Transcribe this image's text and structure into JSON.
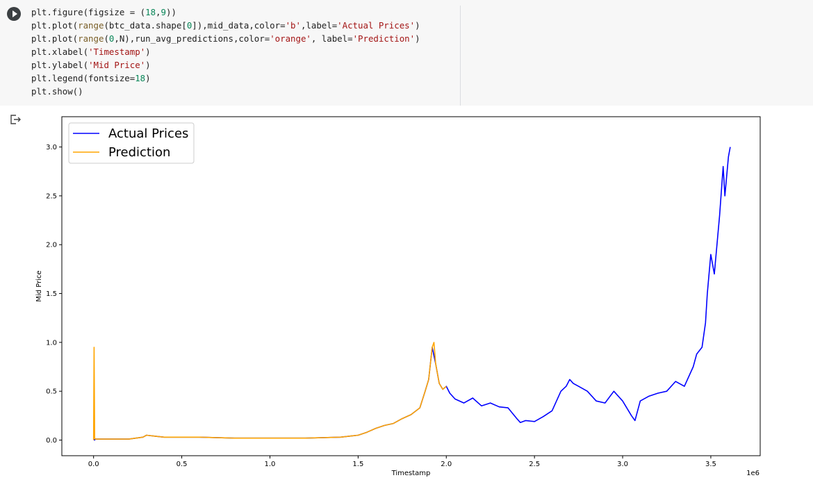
{
  "cell": {
    "code_lines": [
      [
        {
          "t": "plt.figure(figsize = ("
        },
        {
          "t": "18",
          "c": "n"
        },
        {
          "t": ","
        },
        {
          "t": "9",
          "c": "n"
        },
        {
          "t": "))"
        }
      ],
      [
        {
          "t": "plt.plot("
        },
        {
          "t": "range",
          "c": "f"
        },
        {
          "t": "(btc_data.shape["
        },
        {
          "t": "0",
          "c": "n"
        },
        {
          "t": "]),mid_data,color="
        },
        {
          "t": "'b'",
          "c": "s"
        },
        {
          "t": ",label="
        },
        {
          "t": "'Actual Prices'",
          "c": "s"
        },
        {
          "t": ")"
        }
      ],
      [
        {
          "t": "plt.plot("
        },
        {
          "t": "range",
          "c": "f"
        },
        {
          "t": "("
        },
        {
          "t": "0",
          "c": "n"
        },
        {
          "t": ",N),run_avg_predictions,color="
        },
        {
          "t": "'orange'",
          "c": "s"
        },
        {
          "t": ", label="
        },
        {
          "t": "'Prediction'",
          "c": "s"
        },
        {
          "t": ")"
        }
      ],
      [
        {
          "t": "plt.xlabel("
        },
        {
          "t": "'Timestamp'",
          "c": "s"
        },
        {
          "t": ")"
        }
      ],
      [
        {
          "t": "plt.ylabel("
        },
        {
          "t": "'Mid Price'",
          "c": "s"
        },
        {
          "t": ")"
        }
      ],
      [
        {
          "t": "plt.legend(fontsize="
        },
        {
          "t": "18",
          "c": "n"
        },
        {
          "t": ")"
        }
      ],
      [
        {
          "t": "plt.show()"
        }
      ]
    ]
  },
  "chart_data": {
    "type": "line",
    "xlabel": "Timestamp",
    "ylabel": "Mid Price",
    "x_offset_label": "1e6",
    "xlim": [
      -0.18,
      3.78
    ],
    "ylim": [
      -0.16,
      3.31
    ],
    "x_ticks": [
      0.0,
      0.5,
      1.0,
      1.5,
      2.0,
      2.5,
      3.0,
      3.5
    ],
    "x_tick_labels": [
      "0.0",
      "0.5",
      "1.0",
      "1.5",
      "2.0",
      "2.5",
      "3.0",
      "3.5"
    ],
    "y_ticks": [
      0.0,
      0.5,
      1.0,
      1.5,
      2.0,
      2.5,
      3.0
    ],
    "y_tick_labels": [
      "0.0",
      "0.5",
      "1.0",
      "1.5",
      "2.0",
      "2.5",
      "3.0"
    ],
    "grid": false,
    "legend": "top-left",
    "series": [
      {
        "name": "Actual Prices",
        "color": "#0000ff",
        "x": [
          0,
          0.005,
          0.01,
          0.1,
          0.2,
          0.28,
          0.3,
          0.35,
          0.4,
          0.5,
          0.6,
          0.8,
          1.0,
          1.2,
          1.4,
          1.5,
          1.55,
          1.6,
          1.65,
          1.7,
          1.75,
          1.8,
          1.85,
          1.88,
          1.9,
          1.92,
          1.94,
          1.96,
          1.98,
          2.0,
          2.02,
          2.05,
          2.1,
          2.15,
          2.2,
          2.25,
          2.3,
          2.35,
          2.4,
          2.42,
          2.45,
          2.5,
          2.55,
          2.6,
          2.65,
          2.68,
          2.7,
          2.72,
          2.75,
          2.8,
          2.85,
          2.9,
          2.95,
          3.0,
          3.05,
          3.07,
          3.1,
          3.15,
          3.2,
          3.25,
          3.3,
          3.35,
          3.4,
          3.42,
          3.45,
          3.47,
          3.48,
          3.5,
          3.52,
          3.55,
          3.57,
          3.58,
          3.6,
          3.61
        ],
        "y": [
          0.01,
          0.0,
          0.01,
          0.01,
          0.01,
          0.03,
          0.05,
          0.04,
          0.03,
          0.03,
          0.03,
          0.02,
          0.02,
          0.02,
          0.03,
          0.05,
          0.08,
          0.12,
          0.15,
          0.17,
          0.22,
          0.26,
          0.33,
          0.5,
          0.62,
          0.95,
          0.78,
          0.58,
          0.52,
          0.55,
          0.48,
          0.42,
          0.38,
          0.43,
          0.35,
          0.38,
          0.34,
          0.33,
          0.22,
          0.18,
          0.2,
          0.19,
          0.24,
          0.3,
          0.5,
          0.55,
          0.62,
          0.58,
          0.55,
          0.5,
          0.4,
          0.38,
          0.5,
          0.4,
          0.25,
          0.2,
          0.4,
          0.45,
          0.48,
          0.5,
          0.6,
          0.55,
          0.75,
          0.88,
          0.95,
          1.2,
          1.5,
          1.9,
          1.7,
          2.3,
          2.8,
          2.5,
          2.9,
          3.0
        ]
      },
      {
        "name": "Prediction",
        "color": "#ffa500",
        "x": [
          0,
          0.003,
          0.006,
          0.01,
          0.1,
          0.2,
          0.28,
          0.3,
          0.35,
          0.4,
          0.5,
          0.6,
          0.8,
          1.0,
          1.2,
          1.4,
          1.5,
          1.55,
          1.6,
          1.65,
          1.7,
          1.75,
          1.8,
          1.85,
          1.88,
          1.9,
          1.92,
          1.93,
          1.94,
          1.96,
          1.98,
          2.0
        ],
        "y": [
          0.0,
          0.95,
          0.02,
          0.01,
          0.01,
          0.01,
          0.03,
          0.05,
          0.04,
          0.03,
          0.03,
          0.03,
          0.02,
          0.02,
          0.02,
          0.03,
          0.05,
          0.08,
          0.12,
          0.15,
          0.17,
          0.22,
          0.26,
          0.33,
          0.5,
          0.62,
          0.95,
          1.0,
          0.78,
          0.58,
          0.52,
          0.55
        ]
      }
    ]
  }
}
